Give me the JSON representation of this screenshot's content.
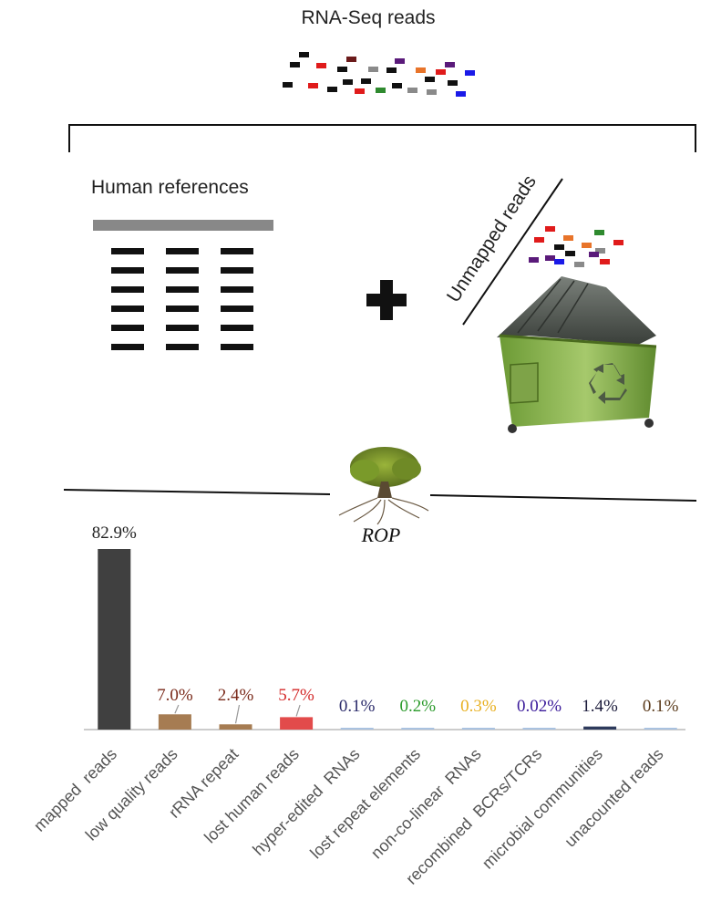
{
  "title": "RNA-Seq reads",
  "human_references_label": "Human references",
  "unmapped_reads_label": "Unmapped reads",
  "rop_label": "ROP",
  "colors": {
    "black": "#111111",
    "red": "#e01b1b",
    "gray": "#8a8a8a",
    "maroon": "#6b1a1a",
    "purple": "#5a1a7a",
    "orange": "#e8742a",
    "green": "#2f8a2f",
    "blue": "#1a1ae8",
    "ref_bar": "#888888",
    "dumpster_green": "#7fae45",
    "dumpster_lid": "#555c55"
  },
  "chart_data": {
    "type": "bar",
    "categories": [
      "mapped  reads",
      "low quality reads",
      "rRNA repeat",
      "lost human reads",
      "hyper-edited  RNAs",
      "lost repeat elements",
      "non-co-linear  RNAs",
      "recombined  BCRs/TCRs",
      "microbial communities",
      "unacounted reads"
    ],
    "values": [
      82.9,
      7.0,
      2.4,
      5.7,
      0.1,
      0.2,
      0.3,
      0.02,
      1.4,
      0.1
    ],
    "value_labels": [
      "82.9%",
      "7.0%",
      "2.4%",
      "5.7%",
      "0.1%",
      "0.2%",
      "0.3%",
      "0.02%",
      "1.4%",
      "0.1%"
    ],
    "bar_colors": [
      "#404040",
      "#a67c52",
      "#a67c52",
      "#e24b4b",
      "#a9c2e0",
      "#a9c2e0",
      "#a9c2e0",
      "#a9c2e0",
      "#2d3a5c",
      "#a9c2e0"
    ],
    "label_colors": [
      "#222222",
      "#7a2a1a",
      "#7a2a1a",
      "#d42a2a",
      "#2a2a6a",
      "#2a9a2a",
      "#e8b020",
      "#3a1a9a",
      "#1a1a3a",
      "#5a3a1a"
    ],
    "ylim": [
      0,
      100
    ]
  }
}
